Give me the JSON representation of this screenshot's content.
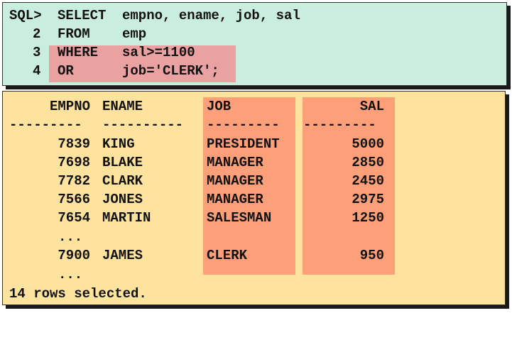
{
  "sql": {
    "prompt": "SQL>",
    "lines": [
      {
        "num": "",
        "keyword": "SELECT",
        "text": "empno, ename, job, sal"
      },
      {
        "num": "2",
        "keyword": "FROM",
        "text": "emp"
      },
      {
        "num": "3",
        "keyword": "WHERE",
        "text": "sal>=1100"
      },
      {
        "num": "4",
        "keyword": "OR",
        "text": "job='CLERK';"
      }
    ]
  },
  "result": {
    "headers": {
      "empno": "EMPNO",
      "ename": "ENAME",
      "job": "JOB",
      "sal": "SAL"
    },
    "separators": {
      "empno": "---------",
      "ename": "----------",
      "job": "---------",
      "sal": "---------"
    },
    "rows": [
      {
        "empno": "7839",
        "ename": "KING",
        "job": "PRESIDENT",
        "sal": "5000"
      },
      {
        "empno": "7698",
        "ename": "BLAKE",
        "job": "MANAGER",
        "sal": "2850"
      },
      {
        "empno": "7782",
        "ename": "CLARK",
        "job": "MANAGER",
        "sal": "2450"
      },
      {
        "empno": "7566",
        "ename": "JONES",
        "job": "MANAGER",
        "sal": "2975"
      },
      {
        "empno": "7654",
        "ename": "MARTIN",
        "job": "SALESMAN",
        "sal": "1250"
      }
    ],
    "ellipsis": "...",
    "last_row": {
      "empno": "7900",
      "ename": "JAMES",
      "job": "CLERK",
      "sal": "950"
    },
    "footer": "14 rows selected."
  },
  "colors": {
    "sql_bg": "#c9eedd",
    "highlight_where": "#e9a2a1",
    "result_bg": "#fde39d",
    "highlight_columns": "#fd9f79"
  }
}
